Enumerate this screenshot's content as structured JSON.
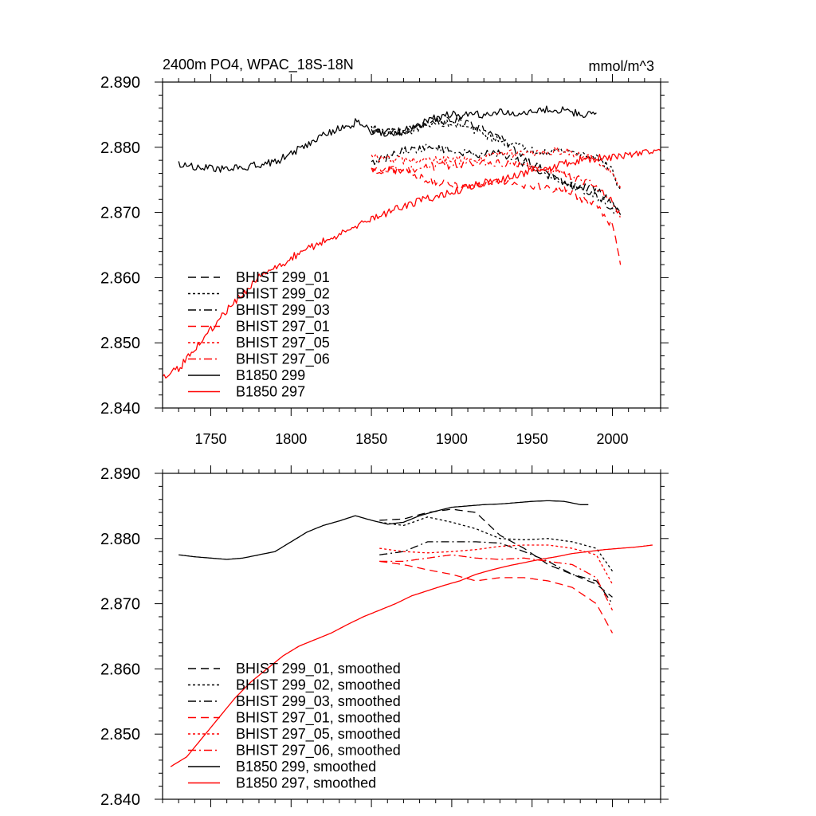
{
  "chart_data": [
    {
      "type": "line",
      "title": "2400m PO4, WPAC_18S-18N",
      "units": "mmol/m^3",
      "xlim": [
        1720,
        2030
      ],
      "ylim": [
        2.84,
        2.89
      ],
      "xticks": [
        1750,
        1800,
        1850,
        1900,
        1950,
        2000
      ],
      "yticks": [
        "2.840",
        "2.850",
        "2.860",
        "2.870",
        "2.880",
        "2.890"
      ],
      "show_x_labels": true,
      "legend_position": "bottom-left",
      "series": [
        {
          "name": "BHIST 299_01",
          "color": "#000000",
          "dash": "dashed",
          "smooth": false,
          "x": [
            1850,
            1870,
            1890,
            1910,
            1930,
            1950,
            1970,
            1990,
            2000,
            2005
          ],
          "y": [
            2.8825,
            2.8825,
            2.884,
            2.884,
            2.8815,
            2.8775,
            2.8745,
            2.8735,
            2.8715,
            2.8695
          ]
        },
        {
          "name": "BHIST 299_02",
          "color": "#000000",
          "dash": "dotted",
          "smooth": false,
          "x": [
            1850,
            1870,
            1890,
            1910,
            1930,
            1950,
            1970,
            1990,
            2000,
            2005
          ],
          "y": [
            2.883,
            2.882,
            2.884,
            2.883,
            2.881,
            2.8795,
            2.8795,
            2.8785,
            2.8765,
            2.873
          ]
        },
        {
          "name": "BHIST 299_03",
          "color": "#000000",
          "dash": "dashdot",
          "smooth": false,
          "x": [
            1850,
            1870,
            1890,
            1910,
            1930,
            1950,
            1970,
            1990,
            2000,
            2005
          ],
          "y": [
            2.8775,
            2.8795,
            2.88,
            2.879,
            2.879,
            2.877,
            2.8745,
            2.8725,
            2.8705,
            2.87
          ]
        },
        {
          "name": "BHIST 297_01",
          "color": "#ff0000",
          "dash": "dashed",
          "smooth": false,
          "x": [
            1850,
            1870,
            1890,
            1910,
            1930,
            1950,
            1970,
            1990,
            2000,
            2005
          ],
          "y": [
            2.8765,
            2.8765,
            2.8745,
            2.874,
            2.875,
            2.874,
            2.8735,
            2.871,
            2.868,
            2.862
          ]
        },
        {
          "name": "BHIST 297_05",
          "color": "#ff0000",
          "dash": "dotted",
          "smooth": false,
          "x": [
            1850,
            1870,
            1890,
            1910,
            1930,
            1950,
            1970,
            1990,
            2000,
            2005
          ],
          "y": [
            2.8785,
            2.878,
            2.878,
            2.878,
            2.879,
            2.879,
            2.8795,
            2.878,
            2.876,
            2.8735
          ]
        },
        {
          "name": "BHIST 297_06",
          "color": "#ff0000",
          "dash": "dashdot",
          "smooth": false,
          "x": [
            1850,
            1870,
            1890,
            1910,
            1930,
            1950,
            1970,
            1990,
            2000,
            2005
          ],
          "y": [
            2.8765,
            2.8765,
            2.877,
            2.8775,
            2.8775,
            2.877,
            2.876,
            2.874,
            2.8715,
            2.8695
          ]
        },
        {
          "name": "B1850 299",
          "color": "#000000",
          "dash": "solid",
          "smooth": false,
          "x": [
            1730,
            1740,
            1750,
            1760,
            1770,
            1780,
            1790,
            1800,
            1810,
            1820,
            1830,
            1840,
            1850,
            1860,
            1870,
            1880,
            1890,
            1900,
            1910,
            1920,
            1930,
            1940,
            1950,
            1960,
            1970,
            1980,
            1990
          ],
          "y": [
            2.8775,
            2.877,
            2.8768,
            2.8767,
            2.8768,
            2.8773,
            2.8777,
            2.879,
            2.8805,
            2.882,
            2.8828,
            2.8838,
            2.8825,
            2.8822,
            2.8825,
            2.8835,
            2.8845,
            2.885,
            2.885,
            2.885,
            2.8853,
            2.8853,
            2.8857,
            2.8858,
            2.8857,
            2.885,
            2.8852
          ]
        },
        {
          "name": "B1850 297",
          "color": "#ff0000",
          "dash": "solid",
          "smooth": false,
          "x": [
            1720,
            1730,
            1740,
            1750,
            1760,
            1770,
            1780,
            1790,
            1800,
            1810,
            1820,
            1830,
            1840,
            1850,
            1860,
            1870,
            1880,
            1890,
            1900,
            1910,
            1920,
            1930,
            1940,
            1950,
            1960,
            1970,
            1980,
            1990,
            2000,
            2010,
            2020,
            2030
          ],
          "y": [
            2.8445,
            2.846,
            2.849,
            2.852,
            2.855,
            2.8575,
            2.86,
            2.8615,
            2.863,
            2.8645,
            2.8655,
            2.8665,
            2.868,
            2.869,
            2.87,
            2.871,
            2.8718,
            2.8725,
            2.873,
            2.874,
            2.8745,
            2.875,
            2.8755,
            2.8765,
            2.8768,
            2.8775,
            2.878,
            2.8783,
            2.8785,
            2.8787,
            2.879,
            2.8795
          ]
        }
      ]
    },
    {
      "type": "line",
      "title": "",
      "units": "",
      "xlim": [
        1720,
        2030
      ],
      "ylim": [
        2.84,
        2.89
      ],
      "xticks": [
        1750,
        1800,
        1850,
        1900,
        1950,
        2000
      ],
      "yticks": [
        "2.840",
        "2.850",
        "2.860",
        "2.870",
        "2.880",
        "2.890"
      ],
      "show_x_labels": false,
      "legend_position": "bottom-left",
      "series": [
        {
          "name": "BHIST 299_01, smoothed",
          "color": "#000000",
          "dash": "dashed",
          "smooth": true,
          "x": [
            1855,
            1870,
            1885,
            1900,
            1915,
            1930,
            1945,
            1960,
            1975,
            1990,
            2000
          ],
          "y": [
            2.8828,
            2.883,
            2.884,
            2.8845,
            2.884,
            2.8805,
            2.8785,
            2.876,
            2.8745,
            2.873,
            2.871
          ]
        },
        {
          "name": "BHIST 299_02, smoothed",
          "color": "#000000",
          "dash": "dotted",
          "smooth": true,
          "x": [
            1855,
            1870,
            1885,
            1900,
            1915,
            1930,
            1945,
            1960,
            1975,
            1990,
            2000
          ],
          "y": [
            2.8825,
            2.882,
            2.8833,
            2.8825,
            2.8815,
            2.88,
            2.8798,
            2.88,
            2.8795,
            2.8785,
            2.875
          ]
        },
        {
          "name": "BHIST 299_03, smoothed",
          "color": "#000000",
          "dash": "dashdot",
          "smooth": true,
          "x": [
            1855,
            1870,
            1885,
            1900,
            1915,
            1930,
            1945,
            1960,
            1975,
            1990,
            2000
          ],
          "y": [
            2.8775,
            2.878,
            2.8795,
            2.8795,
            2.8795,
            2.8793,
            2.878,
            2.8765,
            2.8745,
            2.8735,
            2.87
          ]
        },
        {
          "name": "BHIST 297_01, smoothed",
          "color": "#ff0000",
          "dash": "dashed",
          "smooth": true,
          "x": [
            1855,
            1870,
            1885,
            1900,
            1915,
            1930,
            1945,
            1960,
            1975,
            1990,
            2000
          ],
          "y": [
            2.8765,
            2.876,
            2.8752,
            2.8745,
            2.8735,
            2.874,
            2.874,
            2.8735,
            2.8725,
            2.87,
            2.8655
          ]
        },
        {
          "name": "BHIST 297_05, smoothed",
          "color": "#ff0000",
          "dash": "dotted",
          "smooth": true,
          "x": [
            1855,
            1870,
            1885,
            1900,
            1915,
            1930,
            1945,
            1960,
            1975,
            1990,
            2000
          ],
          "y": [
            2.8785,
            2.878,
            2.8778,
            2.878,
            2.8783,
            2.8788,
            2.879,
            2.879,
            2.8785,
            2.8775,
            2.873
          ]
        },
        {
          "name": "BHIST 297_06, smoothed",
          "color": "#ff0000",
          "dash": "dashdot",
          "smooth": true,
          "x": [
            1855,
            1870,
            1885,
            1900,
            1915,
            1930,
            1945,
            1960,
            1975,
            1990,
            2000
          ],
          "y": [
            2.8765,
            2.8765,
            2.877,
            2.8775,
            2.877,
            2.8768,
            2.877,
            2.8765,
            2.876,
            2.874,
            2.869
          ]
        },
        {
          "name": "B1850 299, smoothed",
          "color": "#000000",
          "dash": "solid",
          "smooth": true,
          "x": [
            1730,
            1740,
            1750,
            1760,
            1770,
            1780,
            1790,
            1800,
            1810,
            1820,
            1830,
            1840,
            1850,
            1860,
            1870,
            1880,
            1890,
            1900,
            1910,
            1920,
            1930,
            1940,
            1950,
            1960,
            1970,
            1980,
            1985
          ],
          "y": [
            2.8775,
            2.8772,
            2.877,
            2.8768,
            2.877,
            2.8775,
            2.878,
            2.8795,
            2.881,
            2.882,
            2.8827,
            2.8835,
            2.8828,
            2.8822,
            2.8825,
            2.8835,
            2.8842,
            2.8848,
            2.885,
            2.8852,
            2.8853,
            2.8855,
            2.8857,
            2.8858,
            2.8857,
            2.8852,
            2.8852
          ]
        },
        {
          "name": "B1850 297, smoothed",
          "color": "#ff0000",
          "dash": "solid",
          "smooth": true,
          "x": [
            1725,
            1735,
            1745,
            1755,
            1765,
            1775,
            1785,
            1795,
            1805,
            1815,
            1825,
            1835,
            1845,
            1855,
            1865,
            1875,
            1885,
            1895,
            1905,
            1915,
            1925,
            1935,
            1945,
            1955,
            1965,
            1975,
            1985,
            1995,
            2005,
            2015,
            2025
          ],
          "y": [
            2.845,
            2.8465,
            2.8495,
            2.8525,
            2.8555,
            2.858,
            2.86,
            2.862,
            2.8635,
            2.8645,
            2.8655,
            2.8668,
            2.868,
            2.869,
            2.87,
            2.8712,
            2.872,
            2.8728,
            2.8735,
            2.8745,
            2.8752,
            2.8758,
            2.8763,
            2.8768,
            2.8772,
            2.8777,
            2.878,
            2.8783,
            2.8785,
            2.8787,
            2.879
          ]
        }
      ]
    }
  ]
}
